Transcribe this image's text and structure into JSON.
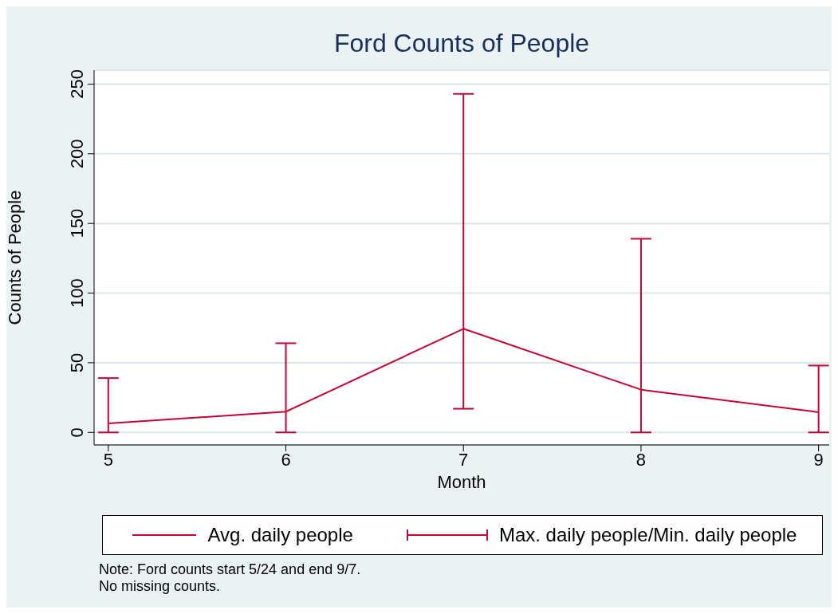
{
  "chart_data": {
    "type": "line",
    "title": "Ford Counts of People",
    "xlabel": "Month",
    "ylabel": "Counts of People",
    "x": [
      5,
      6,
      7,
      8,
      9
    ],
    "series": [
      {
        "name": "Avg. daily people",
        "color": "#c10534",
        "values": [
          6.5,
          14.9,
          74.4,
          30.7,
          14.5
        ],
        "errors": [
          [
            0,
            39
          ],
          [
            0,
            64
          ],
          [
            17,
            243
          ],
          [
            0,
            139
          ],
          [
            0,
            48
          ]
        ]
      }
    ],
    "xlim": [
      4.92,
      9.06
    ],
    "xticks": [
      5,
      6,
      7,
      8,
      9
    ],
    "ylim": [
      -9,
      260
    ],
    "yticks": [
      0,
      50,
      100,
      150,
      200,
      250
    ],
    "grid": "y",
    "legend": "bottom",
    "marker": "none",
    "line_style": "solid",
    "annotations": [
      "Max. daily people/Min. daily people",
      "Note: Ford counts start 5/24 and end 9/7.",
      "No missing counts."
    ]
  }
}
